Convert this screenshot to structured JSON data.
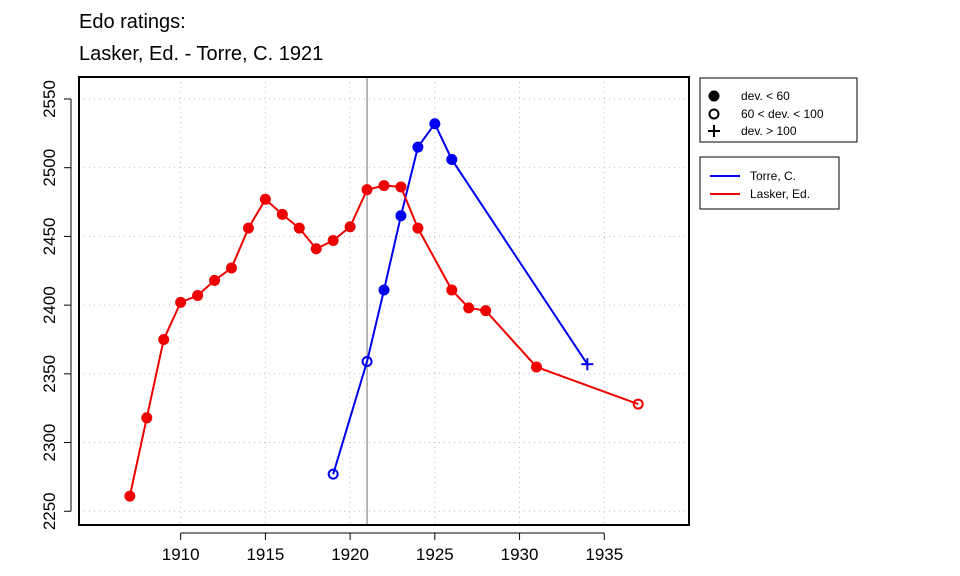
{
  "chart_data": {
    "type": "line",
    "title_line1": "Edo ratings:",
    "title_line2": "Lasker, Ed. - Torre, C. 1921",
    "xlabel": "",
    "ylabel": "",
    "xlim": [
      1904,
      1940
    ],
    "ylim": [
      2240,
      2566
    ],
    "xticks": [
      1910,
      1915,
      1920,
      1925,
      1930,
      1935
    ],
    "yticks": [
      2250,
      2300,
      2350,
      2400,
      2450,
      2500,
      2550
    ],
    "grid": true,
    "reference_line_x": 1921,
    "marker_legend": [
      {
        "symbol": "filled-circle",
        "label": "dev. < 60"
      },
      {
        "symbol": "open-circle",
        "label": "60 < dev. < 100"
      },
      {
        "symbol": "plus",
        "label": "dev. > 100"
      }
    ],
    "series": [
      {
        "name": "Torre, C.",
        "color": "#0000ee",
        "points": [
          {
            "x": 1919,
            "y": 2277,
            "marker": "open-circle"
          },
          {
            "x": 1921,
            "y": 2359,
            "marker": "open-circle"
          },
          {
            "x": 1922,
            "y": 2411,
            "marker": "filled-circle"
          },
          {
            "x": 1923,
            "y": 2465,
            "marker": "filled-circle"
          },
          {
            "x": 1924,
            "y": 2515,
            "marker": "filled-circle"
          },
          {
            "x": 1925,
            "y": 2532,
            "marker": "filled-circle"
          },
          {
            "x": 1926,
            "y": 2506,
            "marker": "filled-circle"
          },
          {
            "x": 1934,
            "y": 2357,
            "marker": "plus"
          }
        ]
      },
      {
        "name": "Lasker, Ed.",
        "color": "#ee0000",
        "points": [
          {
            "x": 1907,
            "y": 2261,
            "marker": "filled-circle"
          },
          {
            "x": 1908,
            "y": 2318,
            "marker": "filled-circle"
          },
          {
            "x": 1909,
            "y": 2375,
            "marker": "filled-circle"
          },
          {
            "x": 1910,
            "y": 2402,
            "marker": "filled-circle"
          },
          {
            "x": 1911,
            "y": 2407,
            "marker": "filled-circle"
          },
          {
            "x": 1912,
            "y": 2418,
            "marker": "filled-circle"
          },
          {
            "x": 1913,
            "y": 2427,
            "marker": "filled-circle"
          },
          {
            "x": 1914,
            "y": 2456,
            "marker": "filled-circle"
          },
          {
            "x": 1915,
            "y": 2477,
            "marker": "filled-circle"
          },
          {
            "x": 1916,
            "y": 2466,
            "marker": "filled-circle"
          },
          {
            "x": 1917,
            "y": 2456,
            "marker": "filled-circle"
          },
          {
            "x": 1918,
            "y": 2441,
            "marker": "filled-circle"
          },
          {
            "x": 1919,
            "y": 2447,
            "marker": "filled-circle"
          },
          {
            "x": 1920,
            "y": 2457,
            "marker": "filled-circle"
          },
          {
            "x": 1921,
            "y": 2484,
            "marker": "filled-circle"
          },
          {
            "x": 1922,
            "y": 2487,
            "marker": "filled-circle"
          },
          {
            "x": 1923,
            "y": 2486,
            "marker": "filled-circle"
          },
          {
            "x": 1924,
            "y": 2456,
            "marker": "filled-circle"
          },
          {
            "x": 1926,
            "y": 2411,
            "marker": "filled-circle"
          },
          {
            "x": 1927,
            "y": 2398,
            "marker": "filled-circle"
          },
          {
            "x": 1928,
            "y": 2396,
            "marker": "filled-circle"
          },
          {
            "x": 1931,
            "y": 2355,
            "marker": "filled-circle"
          },
          {
            "x": 1937,
            "y": 2328,
            "marker": "open-circle"
          }
        ]
      }
    ]
  }
}
